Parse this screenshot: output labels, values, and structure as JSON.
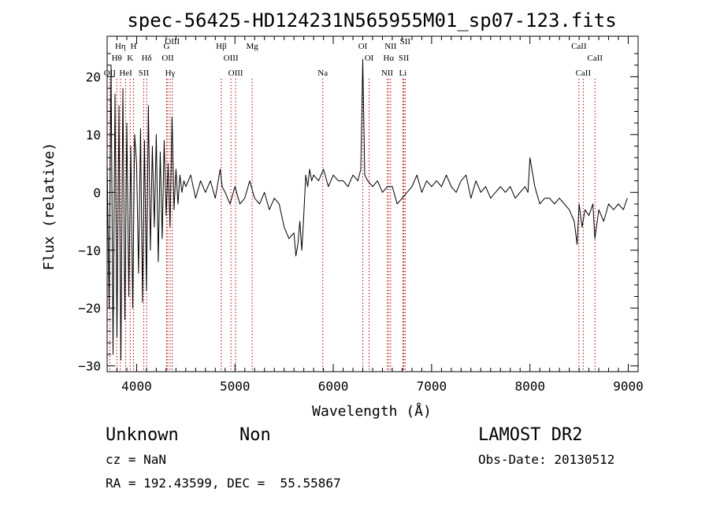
{
  "chart_data": {
    "type": "line",
    "title": "spec-56425-HD124231N565955M01_sp07-123.fits",
    "xlabel": "Wavelength (Å)",
    "ylabel": "Flux (relative)",
    "xlim": [
      3700,
      9100
    ],
    "ylim": [
      -31,
      27
    ],
    "xticks": [
      4000,
      5000,
      6000,
      7000,
      8000,
      9000
    ],
    "yticks": [
      -30,
      -20,
      -10,
      0,
      10,
      20
    ],
    "xtick_labels": [
      "4000",
      "5000",
      "6000",
      "7000",
      "8000",
      "9000"
    ],
    "ytick_labels": [
      "−30",
      "−20",
      "−10",
      "0",
      "10",
      "20"
    ],
    "grid": false,
    "line_markers": [
      {
        "label": "OII",
        "wavelength": 3727,
        "row": 3
      },
      {
        "label": "Hη",
        "wavelength": 3835,
        "row": 1
      },
      {
        "label": "Hθ",
        "wavelength": 3798,
        "row": 2
      },
      {
        "label": "H",
        "wavelength": 3968,
        "row": 1
      },
      {
        "label": "K",
        "wavelength": 3934,
        "row": 2
      },
      {
        "label": "HeI",
        "wavelength": 3889,
        "row": 3
      },
      {
        "label": "Hδ",
        "wavelength": 4102,
        "row": 2
      },
      {
        "label": "SII",
        "wavelength": 4072,
        "row": 3
      },
      {
        "label": "G",
        "wavelength": 4305,
        "row": 1
      },
      {
        "label": "OII",
        "wavelength": 4317,
        "row": 2
      },
      {
        "label": "Hγ",
        "wavelength": 4341,
        "row": 3
      },
      {
        "label": "OIII",
        "wavelength": 4363,
        "row": 0
      },
      {
        "label": "Hβ",
        "wavelength": 4861,
        "row": 1
      },
      {
        "label": "OIII",
        "wavelength": 4959,
        "row": 2
      },
      {
        "label": "OIII",
        "wavelength": 5007,
        "row": 3
      },
      {
        "label": "Mg",
        "wavelength": 5175,
        "row": 1
      },
      {
        "label": "Na",
        "wavelength": 5893,
        "row": 3
      },
      {
        "label": "OI",
        "wavelength": 6300,
        "row": 1
      },
      {
        "label": "OI",
        "wavelength": 6364,
        "row": 2
      },
      {
        "label": "NII",
        "wavelength": 6548,
        "row": 3
      },
      {
        "label": "Hα",
        "wavelength": 6563,
        "row": 2
      },
      {
        "label": "NII",
        "wavelength": 6583,
        "row": 1
      },
      {
        "label": "SII",
        "wavelength": 6717,
        "row": 2
      },
      {
        "label": "SII",
        "wavelength": 6731,
        "row": 0
      },
      {
        "label": "Li",
        "wavelength": 6708,
        "row": 3
      },
      {
        "label": "CaII",
        "wavelength": 8498,
        "row": 1
      },
      {
        "label": "CaII",
        "wavelength": 8542,
        "row": 3
      },
      {
        "label": "CaII",
        "wavelength": 8662,
        "row": 2
      }
    ],
    "series": [
      {
        "x": [
          3700,
          3720,
          3740,
          3760,
          3780,
          3800,
          3820,
          3840,
          3860,
          3880,
          3900,
          3920,
          3940,
          3960,
          3980,
          4000,
          4020,
          4040,
          4060,
          4080,
          4100,
          4120,
          4140,
          4160,
          4180,
          4200,
          4220,
          4240,
          4260,
          4280,
          4300,
          4320,
          4340,
          4360,
          4380,
          4400,
          4420,
          4440,
          4460,
          4480,
          4500,
          4550,
          4600,
          4650,
          4700,
          4750,
          4800,
          4850,
          4870,
          4900,
          4950,
          5000,
          5050,
          5100,
          5150,
          5200,
          5250,
          5300,
          5350,
          5400,
          5450,
          5500,
          5550,
          5600,
          5620,
          5640,
          5660,
          5680,
          5700,
          5720,
          5740,
          5760,
          5780,
          5800,
          5850,
          5900,
          5950,
          6000,
          6050,
          6100,
          6150,
          6200,
          6250,
          6280,
          6300,
          6320,
          6350,
          6400,
          6450,
          6500,
          6550,
          6600,
          6650,
          6700,
          6750,
          6800,
          6850,
          6900,
          6950,
          7000,
          7050,
          7100,
          7150,
          7200,
          7250,
          7300,
          7350,
          7400,
          7450,
          7500,
          7550,
          7600,
          7650,
          7700,
          7750,
          7800,
          7850,
          7900,
          7950,
          7980,
          8000,
          8050,
          8100,
          8150,
          8200,
          8250,
          8300,
          8350,
          8400,
          8450,
          8480,
          8500,
          8530,
          8560,
          8600,
          8640,
          8660,
          8700,
          8750,
          8800,
          8850,
          8900,
          8950,
          8990
        ],
        "y": [
          5,
          -20,
          22,
          -28,
          17,
          -25,
          15,
          -29,
          18,
          -22,
          12,
          -18,
          8,
          -20,
          10,
          5,
          -14,
          11,
          -19,
          9,
          -17,
          15,
          -10,
          8,
          -6,
          10,
          -12,
          7,
          -8,
          9,
          -4,
          5,
          -6,
          13,
          -3,
          4,
          -2,
          3,
          0,
          2,
          1,
          3,
          -1,
          2,
          0,
          2,
          -1,
          4,
          1,
          0,
          -2,
          1,
          -2,
          -1,
          2,
          -1,
          -2,
          0,
          -3,
          -1,
          -2,
          -6,
          -8,
          -7,
          -11,
          -9,
          -5,
          -10,
          -4,
          3,
          1,
          4,
          2,
          3,
          2,
          4,
          1,
          3,
          2,
          2,
          1,
          3,
          2,
          4,
          23,
          3,
          2,
          1,
          2,
          0,
          1,
          1,
          -2,
          -1,
          0,
          1,
          3,
          0,
          2,
          1,
          2,
          1,
          3,
          1,
          0,
          2,
          3,
          -1,
          2,
          0,
          1,
          -1,
          0,
          1,
          0,
          1,
          -1,
          0,
          1,
          0,
          6,
          1,
          -2,
          -1,
          -1,
          -2,
          -1,
          -2,
          -3,
          -5,
          -9,
          -2,
          -6,
          -3,
          -4,
          -2,
          -8,
          -3,
          -5,
          -2,
          -3,
          -2,
          -3,
          -1
        ]
      }
    ],
    "info": {
      "class": "Unknown",
      "subclass": "Non",
      "survey": "LAMOST DR2",
      "cz": "cz = NaN",
      "obs_date": "Obs-Date: 20130512",
      "coords": "RA = 192.43599, DEC =  55.55867"
    }
  }
}
